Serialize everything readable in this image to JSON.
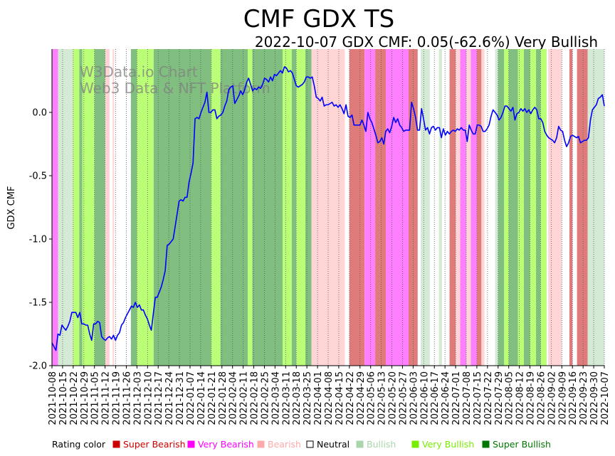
{
  "chart_data": {
    "type": "line",
    "title": "CMF GDX TS",
    "subtitle": "2022-10-07 GDX CMF: 0.05(-62.6%) Very Bullish",
    "ylabel": "GDX CMF",
    "ylim": [
      -2.0,
      0.5
    ],
    "yticks": [
      -2.0,
      -1.5,
      -1.0,
      -0.5,
      0.0
    ],
    "ytick_labels": [
      "-2.0",
      "-1.5",
      "-1.0",
      "-0.5",
      "0.0"
    ],
    "x_range": [
      "2021-10-08",
      "2022-10-07"
    ],
    "xtick_labels": [
      "2021-10-08",
      "2021-10-15",
      "2021-10-22",
      "2021-10-29",
      "2021-11-05",
      "2021-11-12",
      "2021-11-19",
      "2021-11-26",
      "2021-12-03",
      "2021-12-10",
      "2021-12-17",
      "2021-12-24",
      "2021-12-31",
      "2022-01-07",
      "2022-01-14",
      "2022-01-21",
      "2022-01-28",
      "2022-02-04",
      "2022-02-11",
      "2022-02-18",
      "2022-02-25",
      "2022-03-04",
      "2022-03-11",
      "2022-03-18",
      "2022-03-25",
      "2022-04-01",
      "2022-04-08",
      "2022-04-15",
      "2022-04-22",
      "2022-04-29",
      "2022-05-06",
      "2022-05-13",
      "2022-05-20",
      "2022-05-27",
      "2022-06-03",
      "2022-06-10",
      "2022-06-17",
      "2022-06-24",
      "2022-07-01",
      "2022-07-08",
      "2022-07-15",
      "2022-07-22",
      "2022-07-29",
      "2022-08-05",
      "2022-08-12",
      "2022-08-19",
      "2022-08-26",
      "2022-09-02",
      "2022-09-09",
      "2022-09-16",
      "2022-09-23",
      "2022-09-30",
      "2022-10-07"
    ],
    "watermark": [
      "W3Data.io Chart",
      "Web3 Data & NFT Platform"
    ],
    "series": [
      {
        "color": "#0000ff",
        "values": [
          -1.82,
          -1.85,
          -1.88,
          -1.75,
          -1.76,
          -1.68,
          -1.7,
          -1.72,
          -1.69,
          -1.65,
          -1.58,
          -1.58,
          -1.58,
          -1.62,
          -1.58,
          -1.67,
          -1.67,
          -1.68,
          -1.68,
          -1.75,
          -1.8,
          -1.67,
          -1.67,
          -1.65,
          -1.66,
          -1.77,
          -1.79,
          -1.8,
          -1.78,
          -1.77,
          -1.79,
          -1.76,
          -1.8,
          -1.76,
          -1.74,
          -1.68,
          -1.66,
          -1.62,
          -1.59,
          -1.56,
          -1.53,
          -1.54,
          -1.5,
          -1.54,
          -1.52,
          -1.56,
          -1.56,
          -1.6,
          -1.63,
          -1.68,
          -1.72,
          -1.59,
          -1.46,
          -1.46,
          -1.42,
          -1.38,
          -1.32,
          -1.25,
          -1.05,
          -1.04,
          -1.02,
          -1.0,
          -0.9,
          -0.8,
          -0.7,
          -0.69,
          -0.7,
          -0.67,
          -0.67,
          -0.55,
          -0.48,
          -0.4,
          -0.05,
          -0.04,
          -0.05,
          0.0,
          0.04,
          0.08,
          0.16,
          0.0,
          0.0,
          0.02,
          0.02,
          -0.05,
          -0.03,
          -0.02,
          0.0,
          0.05,
          0.09,
          0.18,
          0.2,
          0.21,
          0.07,
          0.1,
          0.13,
          0.17,
          0.14,
          0.18,
          0.24,
          0.27,
          0.22,
          0.17,
          0.19,
          0.18,
          0.2,
          0.19,
          0.22,
          0.27,
          0.26,
          0.24,
          0.28,
          0.25,
          0.3,
          0.29,
          0.31,
          0.33,
          0.31,
          0.36,
          0.35,
          0.32,
          0.33,
          0.31,
          0.26,
          0.21,
          0.2,
          0.21,
          0.22,
          0.24,
          0.28,
          0.28,
          0.27,
          0.28,
          0.21,
          0.12,
          0.11,
          0.09,
          0.12,
          0.05,
          0.06,
          0.06,
          0.07,
          0.08,
          0.05,
          0.06,
          0.04,
          0.06,
          0.03,
          -0.01,
          0.06,
          -0.03,
          -0.04,
          -0.02,
          -0.1,
          -0.1,
          -0.1,
          -0.1,
          -0.06,
          -0.1,
          -0.15,
          0.0,
          -0.05,
          -0.08,
          -0.13,
          -0.18,
          -0.24,
          -0.23,
          -0.2,
          -0.25,
          -0.15,
          -0.13,
          -0.16,
          -0.11,
          -0.04,
          -0.08,
          -0.05,
          -0.1,
          -0.12,
          -0.15,
          -0.14,
          -0.14,
          -0.14,
          0.08,
          0.03,
          -0.04,
          -0.14,
          -0.14,
          0.03,
          -0.05,
          -0.14,
          -0.12,
          -0.17,
          -0.12,
          -0.11,
          -0.14,
          -0.12,
          -0.12,
          -0.2,
          -0.13,
          -0.18,
          -0.15,
          -0.17,
          -0.15,
          -0.14,
          -0.15,
          -0.13,
          -0.14,
          -0.12,
          -0.14,
          -0.14,
          -0.23,
          -0.1,
          -0.14,
          -0.17,
          -0.17,
          -0.1,
          -0.1,
          -0.11,
          -0.15,
          -0.15,
          -0.13,
          -0.1,
          -0.03,
          0.02,
          0.0,
          -0.02,
          -0.06,
          -0.04,
          0.0,
          0.05,
          0.05,
          0.03,
          0.01,
          0.04,
          -0.06,
          -0.01,
          0.0,
          0.03,
          0.01,
          0.03,
          0.0,
          0.02,
          -0.01,
          0.02,
          0.04,
          0.02,
          -0.05,
          -0.05,
          -0.08,
          -0.15,
          -0.18,
          -0.2,
          -0.21,
          -0.22,
          -0.24,
          -0.2,
          -0.11,
          -0.14,
          -0.15,
          -0.22,
          -0.27,
          -0.24,
          -0.19,
          -0.18,
          -0.19,
          -0.2,
          -0.19,
          -0.24,
          -0.23,
          -0.22,
          -0.22,
          -0.2,
          -0.06,
          0.02,
          0.04,
          0.06,
          0.11,
          0.12,
          0.14,
          0.05
        ]
      }
    ],
    "rating_legend": [
      {
        "label": "Super Bearish",
        "color": "#cc0000"
      },
      {
        "label": "Very Bearish",
        "color": "#ff00ff"
      },
      {
        "label": "Bearish",
        "color": "#ffaaaa"
      },
      {
        "label": "Neutral",
        "color": "#ffffff"
      },
      {
        "label": "Bullish",
        "color": "#aad4aa"
      },
      {
        "label": "Very Bullish",
        "color": "#77ee00"
      },
      {
        "label": "Super Bullish",
        "color": "#007700"
      }
    ],
    "rating_legend_title": "Rating color",
    "rating_bands": [
      {
        "from": "2021-10-08",
        "to": "2021-10-12",
        "rating": "Very Bearish"
      },
      {
        "from": "2021-10-12",
        "to": "2021-10-22",
        "rating": "Bullish"
      },
      {
        "from": "2021-10-22",
        "to": "2021-10-26",
        "rating": "Very Bullish"
      },
      {
        "from": "2021-10-26",
        "to": "2021-10-28",
        "rating": "Super Bullish"
      },
      {
        "from": "2021-10-28",
        "to": "2021-11-05",
        "rating": "Very Bullish"
      },
      {
        "from": "2021-11-05",
        "to": "2021-11-12",
        "rating": "Super Bullish"
      },
      {
        "from": "2021-11-12",
        "to": "2021-11-15",
        "rating": "Bearish"
      },
      {
        "from": "2021-11-17",
        "to": "2021-11-18",
        "rating": "Bearish"
      },
      {
        "from": "2021-11-29",
        "to": "2021-12-03",
        "rating": "Super Bullish"
      },
      {
        "from": "2021-12-03",
        "to": "2021-12-14",
        "rating": "Very Bullish"
      },
      {
        "from": "2021-12-14",
        "to": "2022-01-21",
        "rating": "Super Bullish"
      },
      {
        "from": "2022-01-21",
        "to": "2022-01-27",
        "rating": "Very Bullish"
      },
      {
        "from": "2022-01-27",
        "to": "2022-02-14",
        "rating": "Super Bullish"
      },
      {
        "from": "2022-02-14",
        "to": "2022-02-17",
        "rating": "Very Bullish"
      },
      {
        "from": "2022-02-17",
        "to": "2022-03-09",
        "rating": "Super Bullish"
      },
      {
        "from": "2022-03-09",
        "to": "2022-03-15",
        "rating": "Very Bullish"
      },
      {
        "from": "2022-03-15",
        "to": "2022-03-18",
        "rating": "Super Bullish"
      },
      {
        "from": "2022-03-18",
        "to": "2022-03-24",
        "rating": "Very Bullish"
      },
      {
        "from": "2022-03-24",
        "to": "2022-03-28",
        "rating": "Super Bullish"
      },
      {
        "from": "2022-03-28",
        "to": "2022-04-19",
        "rating": "Bearish"
      },
      {
        "from": "2022-04-22",
        "to": "2022-05-02",
        "rating": "Super Bearish"
      },
      {
        "from": "2022-05-02",
        "to": "2022-05-09",
        "rating": "Very Bearish"
      },
      {
        "from": "2022-05-09",
        "to": "2022-05-16",
        "rating": "Super Bearish"
      },
      {
        "from": "2022-05-16",
        "to": "2022-05-31",
        "rating": "Very Bearish"
      },
      {
        "from": "2022-05-31",
        "to": "2022-06-06",
        "rating": "Super Bearish"
      },
      {
        "from": "2022-06-08",
        "to": "2022-06-14",
        "rating": "Bullish"
      },
      {
        "from": "2022-06-20",
        "to": "2022-06-22",
        "rating": "Bullish"
      },
      {
        "from": "2022-06-27",
        "to": "2022-07-01",
        "rating": "Super Bearish"
      },
      {
        "from": "2022-07-01",
        "to": "2022-07-04",
        "rating": "Bearish"
      },
      {
        "from": "2022-07-04",
        "to": "2022-07-08",
        "rating": "Very Bearish"
      },
      {
        "from": "2022-07-08",
        "to": "2022-07-11",
        "rating": "Bearish"
      },
      {
        "from": "2022-07-11",
        "to": "2022-07-15",
        "rating": "Very Bearish"
      },
      {
        "from": "2022-07-15",
        "to": "2022-07-18",
        "rating": "Super Bearish"
      },
      {
        "from": "2022-07-18",
        "to": "2022-07-20",
        "rating": "Bearish"
      },
      {
        "from": "2022-07-27",
        "to": "2022-07-29",
        "rating": "Bullish"
      },
      {
        "from": "2022-07-29",
        "to": "2022-08-02",
        "rating": "Super Bullish"
      },
      {
        "from": "2022-08-02",
        "to": "2022-08-05",
        "rating": "Very Bullish"
      },
      {
        "from": "2022-08-05",
        "to": "2022-08-11",
        "rating": "Super Bullish"
      },
      {
        "from": "2022-08-11",
        "to": "2022-08-15",
        "rating": "Very Bullish"
      },
      {
        "from": "2022-08-15",
        "to": "2022-08-19",
        "rating": "Super Bullish"
      },
      {
        "from": "2022-08-19",
        "to": "2022-08-23",
        "rating": "Very Bullish"
      },
      {
        "from": "2022-08-23",
        "to": "2022-08-26",
        "rating": "Super Bullish"
      },
      {
        "from": "2022-08-26",
        "to": "2022-08-30",
        "rating": "Very Bullish"
      },
      {
        "from": "2022-08-31",
        "to": "2022-09-09",
        "rating": "Bearish"
      },
      {
        "from": "2022-09-14",
        "to": "2022-09-16",
        "rating": "Super Bearish"
      },
      {
        "from": "2022-09-19",
        "to": "2022-09-26",
        "rating": "Super Bearish"
      },
      {
        "from": "2022-09-26",
        "to": "2022-10-07",
        "rating": "Bullish"
      }
    ]
  }
}
